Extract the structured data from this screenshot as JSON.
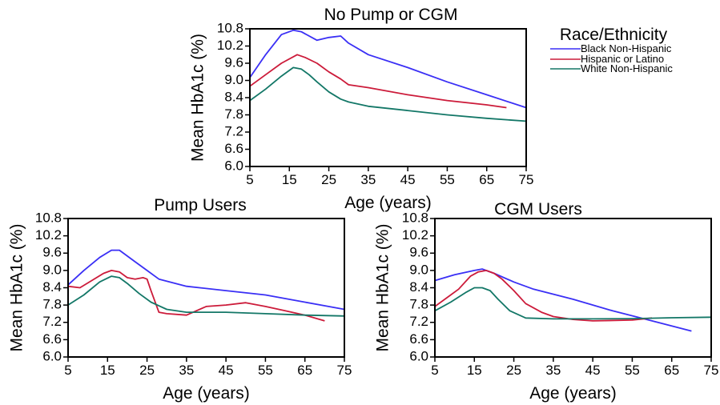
{
  "legend": {
    "title": "Race/Ethnicity",
    "entries": [
      {
        "name": "Black Non-Hispanic",
        "color": "#3a2ff5"
      },
      {
        "name": "Hispanic or Latino",
        "color": "#cc1b3a"
      },
      {
        "name": "White Non-Hispanic",
        "color": "#137767"
      }
    ]
  },
  "chart_data": [
    {
      "type": "line",
      "title": "No Pump or CGM",
      "xlabel": "Age (years)",
      "ylabel": "Mean HbA1c (%)",
      "xlim": [
        5,
        75
      ],
      "ylim": [
        6.0,
        10.8
      ],
      "xticks": [
        "5",
        "15",
        "25",
        "35",
        "45",
        "55",
        "65",
        "75"
      ],
      "yticks": [
        "6.0",
        "6.6",
        "7.2",
        "7.8",
        "8.4",
        "9.0",
        "9.6",
        "10.2",
        "10.8"
      ],
      "series": [
        {
          "name": "Black Non-Hispanic",
          "x": [
            5,
            9,
            13,
            16,
            18,
            22,
            25,
            28,
            30,
            35,
            45,
            55,
            65,
            75
          ],
          "y": [
            9.1,
            9.9,
            10.6,
            10.75,
            10.7,
            10.4,
            10.5,
            10.55,
            10.3,
            9.9,
            9.45,
            8.95,
            8.5,
            8.05
          ]
        },
        {
          "name": "Hispanic or Latino",
          "x": [
            5,
            9,
            13,
            17,
            19,
            22,
            25,
            28,
            30,
            35,
            45,
            55,
            65,
            70
          ],
          "y": [
            8.8,
            9.2,
            9.6,
            9.9,
            9.8,
            9.6,
            9.3,
            9.05,
            8.85,
            8.75,
            8.5,
            8.3,
            8.15,
            8.05
          ]
        },
        {
          "name": "White Non-Hispanic",
          "x": [
            5,
            9,
            13,
            16,
            18,
            20,
            22,
            25,
            28,
            30,
            35,
            45,
            55,
            65,
            75
          ],
          "y": [
            8.3,
            8.7,
            9.15,
            9.45,
            9.4,
            9.2,
            8.95,
            8.6,
            8.35,
            8.25,
            8.1,
            7.95,
            7.8,
            7.68,
            7.58
          ]
        }
      ]
    },
    {
      "type": "line",
      "title": "Pump Users",
      "xlabel": "Age (years)",
      "ylabel": "Mean HbA1c (%)",
      "xlim": [
        5,
        75
      ],
      "ylim": [
        6.0,
        10.8
      ],
      "xticks": [
        "5",
        "15",
        "25",
        "35",
        "45",
        "55",
        "65",
        "75"
      ],
      "yticks": [
        "6.0",
        "6.6",
        "7.2",
        "7.8",
        "8.4",
        "9.0",
        "9.6",
        "10.2",
        "10.8"
      ],
      "series": [
        {
          "name": "Black Non-Hispanic",
          "x": [
            5,
            9,
            13,
            16,
            18,
            22,
            25,
            28,
            35,
            45,
            55,
            65,
            75
          ],
          "y": [
            8.5,
            9.0,
            9.45,
            9.7,
            9.7,
            9.3,
            9.0,
            8.7,
            8.45,
            8.3,
            8.15,
            7.9,
            7.65
          ]
        },
        {
          "name": "Hispanic or Latino",
          "x": [
            5,
            8,
            11,
            14,
            16,
            18,
            20,
            22,
            24,
            25,
            26,
            28,
            30,
            35,
            40,
            45,
            50,
            55,
            60,
            65,
            70
          ],
          "y": [
            8.45,
            8.4,
            8.65,
            8.9,
            9.0,
            8.95,
            8.75,
            8.7,
            8.75,
            8.7,
            8.3,
            7.55,
            7.5,
            7.45,
            7.75,
            7.8,
            7.88,
            7.75,
            7.6,
            7.45,
            7.25
          ]
        },
        {
          "name": "White Non-Hispanic",
          "x": [
            5,
            9,
            13,
            16,
            18,
            20,
            23,
            26,
            30,
            35,
            40,
            45,
            55,
            65,
            75
          ],
          "y": [
            7.8,
            8.15,
            8.6,
            8.8,
            8.75,
            8.55,
            8.2,
            7.9,
            7.65,
            7.55,
            7.55,
            7.55,
            7.5,
            7.45,
            7.42
          ]
        }
      ]
    },
    {
      "type": "line",
      "title": "CGM Users",
      "xlabel": "Age (years)",
      "ylabel": "Mean HbA1c (%)",
      "xlim": [
        5,
        75
      ],
      "ylim": [
        6.0,
        10.8
      ],
      "xticks": [
        "5",
        "15",
        "25",
        "35",
        "45",
        "55",
        "65",
        "75"
      ],
      "yticks": [
        "6.0",
        "6.6",
        "7.2",
        "7.8",
        "8.4",
        "9.0",
        "9.6",
        "10.2",
        "10.8"
      ],
      "series": [
        {
          "name": "Black Non-Hispanic",
          "x": [
            5,
            10,
            15,
            17,
            20,
            25,
            30,
            40,
            50,
            60,
            70
          ],
          "y": [
            8.65,
            8.85,
            9.0,
            9.05,
            8.9,
            8.6,
            8.35,
            8.0,
            7.6,
            7.25,
            6.9
          ]
        },
        {
          "name": "Hispanic or Latino",
          "x": [
            5,
            8,
            11,
            14,
            16,
            18,
            20,
            22,
            25,
            28,
            32,
            35,
            40,
            45,
            55,
            60
          ],
          "y": [
            7.75,
            8.05,
            8.35,
            8.8,
            8.95,
            9.0,
            8.9,
            8.7,
            8.3,
            7.85,
            7.55,
            7.4,
            7.3,
            7.25,
            7.28,
            7.35
          ]
        },
        {
          "name": "White Non-Hispanic",
          "x": [
            5,
            9,
            13,
            15,
            17,
            19,
            21,
            24,
            28,
            35,
            45,
            55,
            65,
            75
          ],
          "y": [
            7.6,
            7.9,
            8.25,
            8.4,
            8.4,
            8.3,
            8.0,
            7.6,
            7.35,
            7.32,
            7.32,
            7.33,
            7.36,
            7.38
          ]
        }
      ]
    }
  ]
}
